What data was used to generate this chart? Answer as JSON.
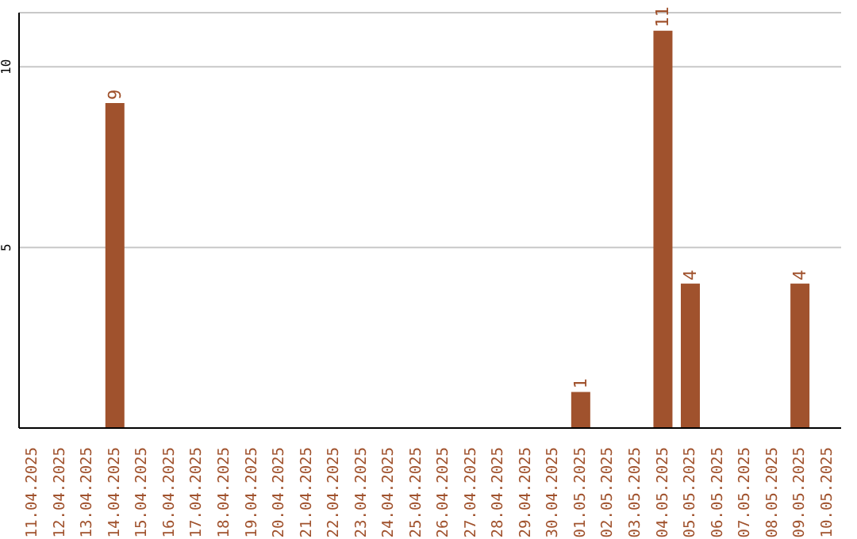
{
  "chart_data": {
    "type": "bar",
    "categories": [
      "11.04.2025",
      "12.04.2025",
      "13.04.2025",
      "14.04.2025",
      "15.04.2025",
      "16.04.2025",
      "17.04.2025",
      "18.04.2025",
      "19.04.2025",
      "20.04.2025",
      "21.04.2025",
      "22.04.2025",
      "23.04.2025",
      "24.04.2025",
      "25.04.2025",
      "26.04.2025",
      "27.04.2025",
      "28.04.2025",
      "29.04.2025",
      "30.04.2025",
      "01.05.2025",
      "02.05.2025",
      "03.05.2025",
      "04.05.2025",
      "05.05.2025",
      "06.05.2025",
      "07.05.2025",
      "08.05.2025",
      "09.05.2025",
      "10.05.2025"
    ],
    "values": [
      0,
      0,
      0,
      9,
      0,
      0,
      0,
      0,
      0,
      0,
      0,
      0,
      0,
      0,
      0,
      0,
      0,
      0,
      0,
      0,
      1,
      0,
      0,
      11,
      4,
      0,
      0,
      0,
      4,
      0
    ],
    "color": "#a0522d",
    "value_labels": [
      null,
      null,
      null,
      "9",
      null,
      null,
      null,
      null,
      null,
      null,
      null,
      null,
      null,
      null,
      null,
      null,
      null,
      null,
      null,
      null,
      "1",
      null,
      null,
      "11",
      "4",
      null,
      null,
      null,
      "4",
      null
    ],
    "ylim": [
      0,
      11.5
    ],
    "yticks": [
      5,
      10
    ],
    "grid": "y"
  }
}
